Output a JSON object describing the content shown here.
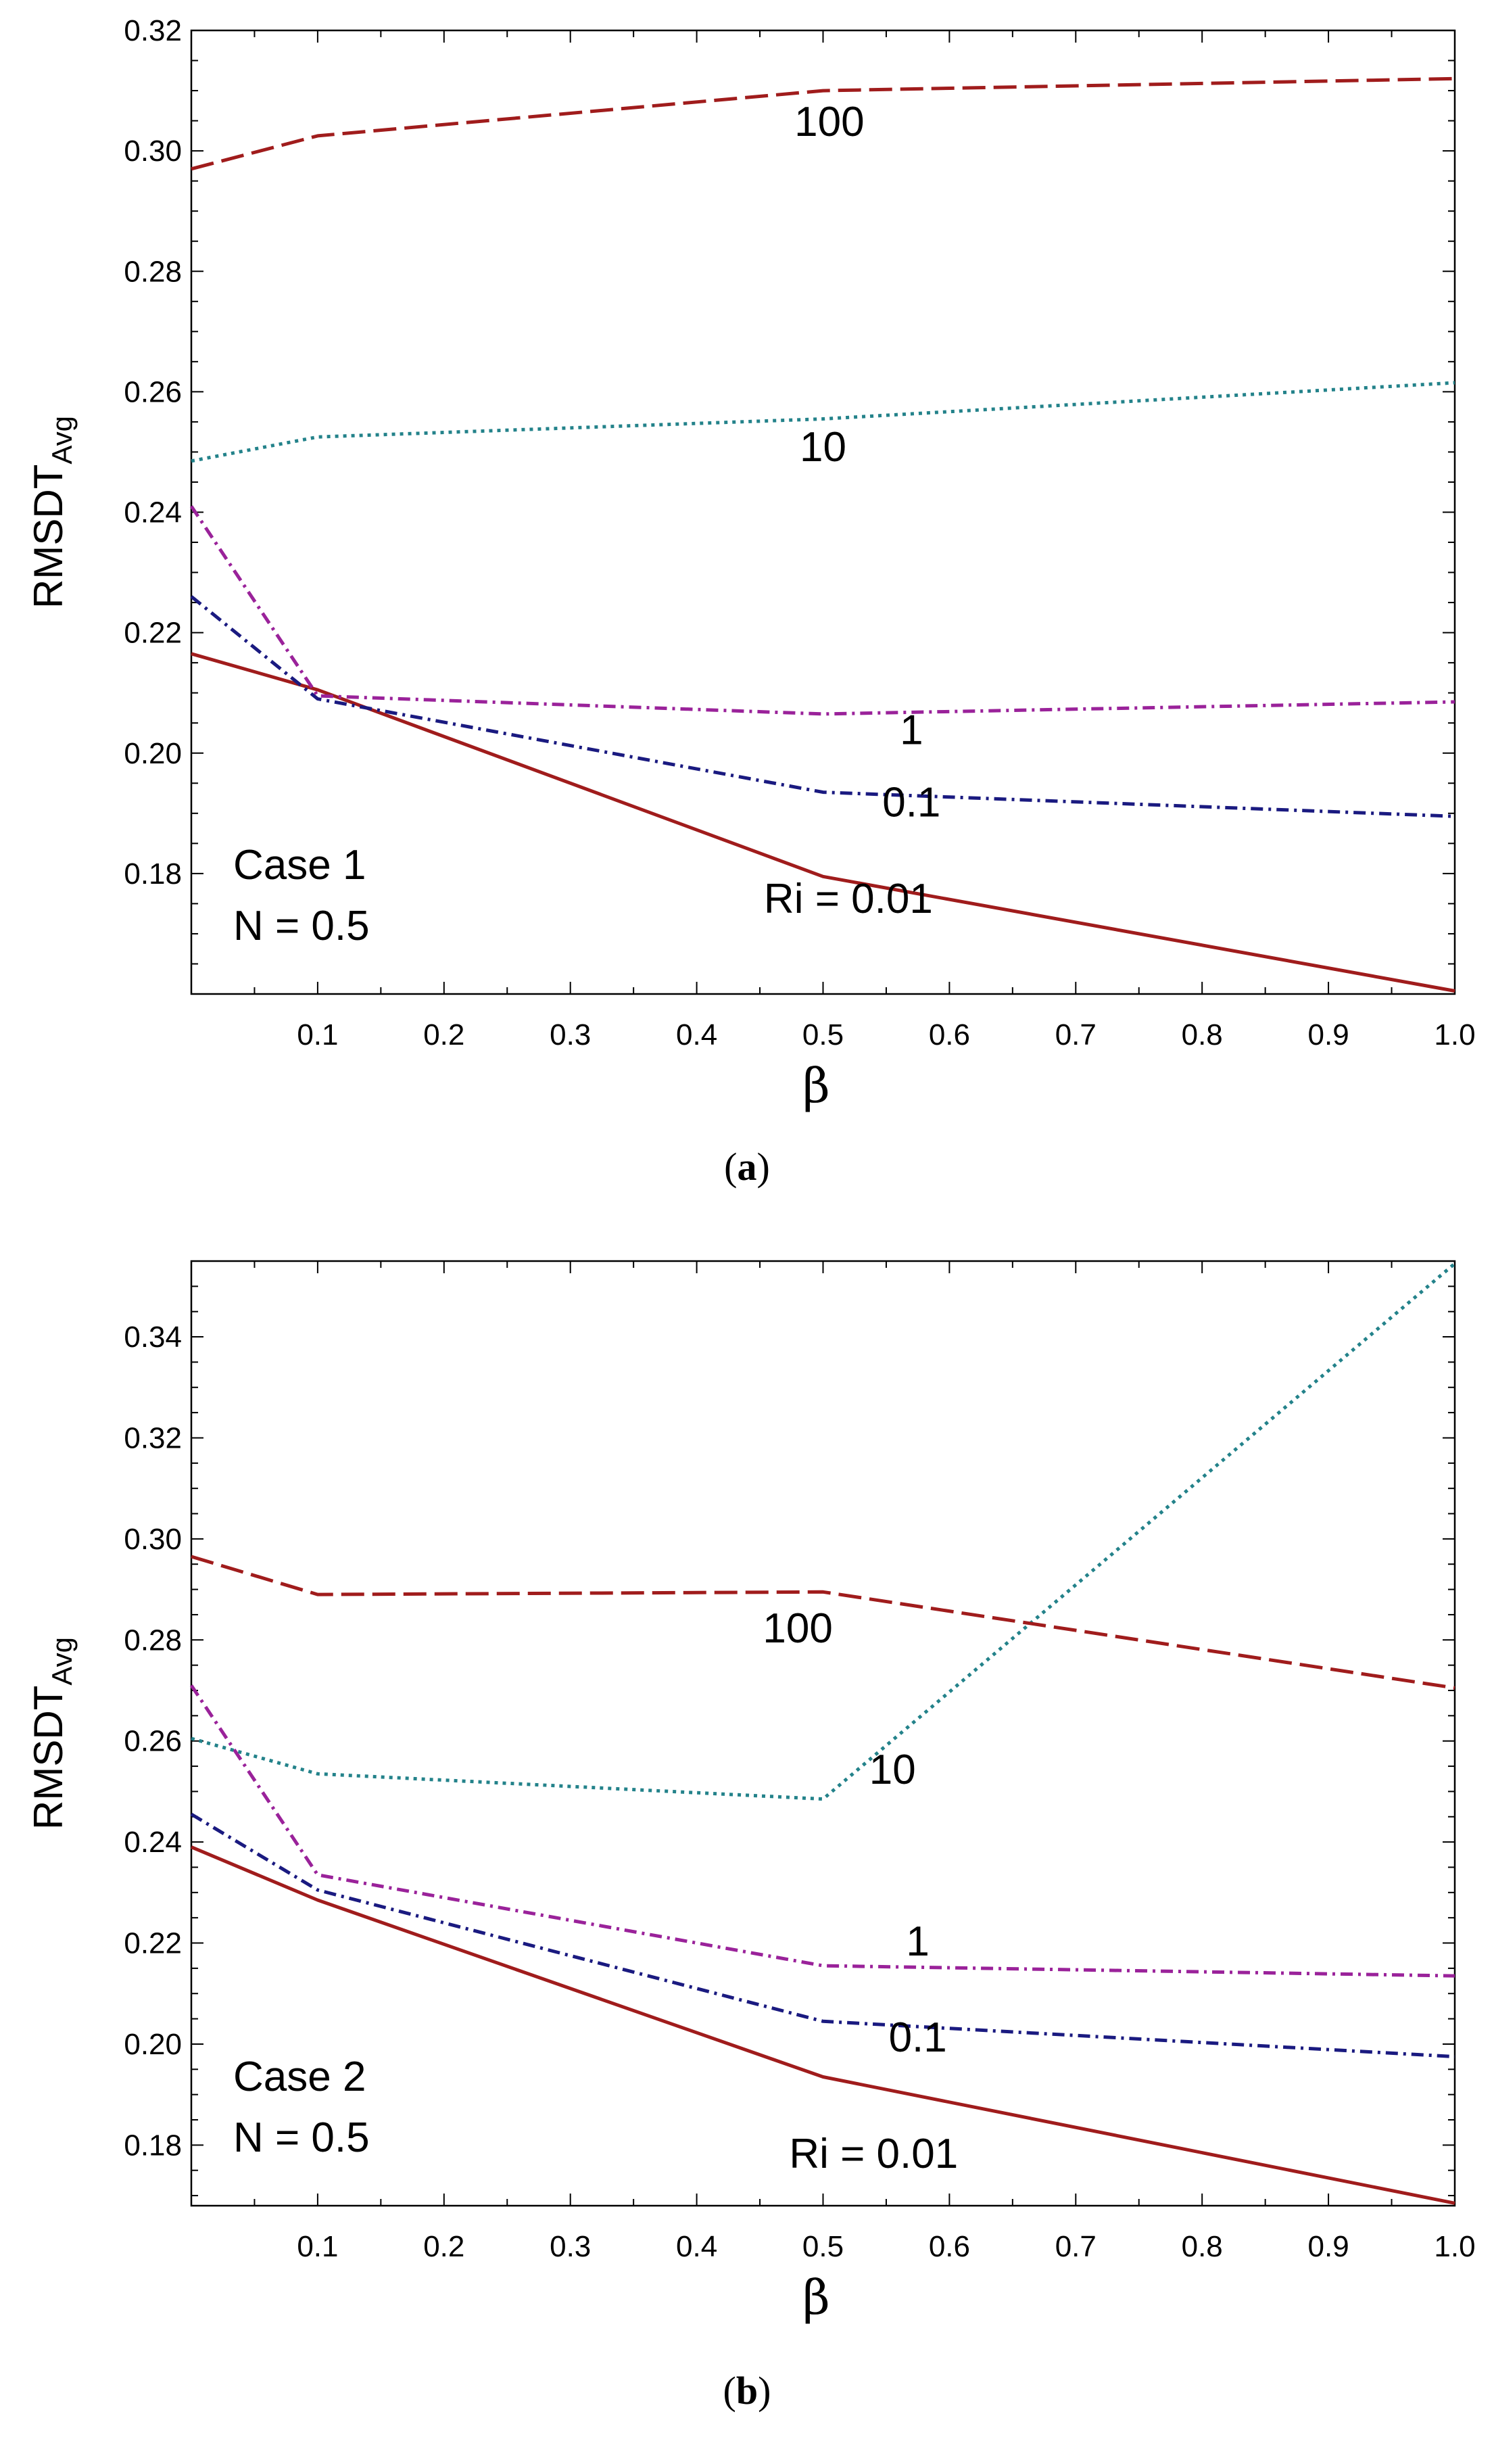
{
  "chart_data": [
    {
      "type": "line",
      "caption_letter": "a",
      "xlabel": "β",
      "ylabel": "RMSDT",
      "ylabel_sub": "Avg",
      "xlim": [
        0,
        1.0
      ],
      "ylim": [
        0.16,
        0.32
      ],
      "xticks": [
        0.1,
        0.2,
        0.3,
        0.4,
        0.5,
        0.6,
        0.7,
        0.8,
        0.9,
        1.0
      ],
      "xtick_labels": [
        "0.1",
        "0.2",
        "0.3",
        "0.4",
        "0.5",
        "0.6",
        "0.7",
        "0.8",
        "0.9",
        "1.0"
      ],
      "yticks": [
        0.18,
        0.2,
        0.22,
        0.24,
        0.26,
        0.28,
        0.3,
        0.32
      ],
      "ytick_labels": [
        "0.18",
        "0.20",
        "0.22",
        "0.24",
        "0.26",
        "0.28",
        "0.30",
        "0.32"
      ],
      "case_label": "Case 1",
      "n_label": "N = 0.5",
      "series": [
        {
          "name": "Ri = 0.01",
          "label": "Ri = 0.01",
          "label_x": 0.52,
          "label_y": 0.1735,
          "color": "#a01c1c",
          "dash": "solid",
          "x": [
            0,
            0.1,
            0.5,
            1.0
          ],
          "values": [
            0.2165,
            0.2105,
            0.1795,
            0.1605
          ]
        },
        {
          "name": "0.1",
          "label": "0.1",
          "label_x": 0.57,
          "label_y": 0.1895,
          "color": "#1a1a80",
          "dash": "dashdot",
          "x": [
            0,
            0.1,
            0.5,
            1.0
          ],
          "values": [
            0.226,
            0.209,
            0.1935,
            0.1895
          ]
        },
        {
          "name": "1",
          "label": "1",
          "label_x": 0.57,
          "label_y": 0.2015,
          "color": "#9a229a",
          "dash": "dashdot",
          "x": [
            0,
            0.1,
            0.5,
            1.0
          ],
          "values": [
            0.241,
            0.2095,
            0.2065,
            0.2085
          ]
        },
        {
          "name": "10",
          "label": "10",
          "label_x": 0.5,
          "label_y": 0.2485,
          "color": "#23828a",
          "dash": "dotted",
          "x": [
            0,
            0.1,
            0.5,
            1.0
          ],
          "values": [
            0.2485,
            0.2525,
            0.2555,
            0.2615
          ]
        },
        {
          "name": "100",
          "label": "100",
          "label_x": 0.505,
          "label_y": 0.3025,
          "color": "#a01c1c",
          "dash": "longdash",
          "x": [
            0,
            0.1,
            0.5,
            1.0
          ],
          "values": [
            0.297,
            0.3025,
            0.31,
            0.312
          ]
        }
      ]
    },
    {
      "type": "line",
      "caption_letter": "b",
      "xlabel": "β",
      "ylabel": "RMSDT",
      "ylabel_sub": "Avg",
      "xlim": [
        0,
        1.0
      ],
      "ylim": [
        0.168,
        0.355
      ],
      "xticks": [
        0.1,
        0.2,
        0.3,
        0.4,
        0.5,
        0.6,
        0.7,
        0.8,
        0.9,
        1.0
      ],
      "xtick_labels": [
        "0.1",
        "0.2",
        "0.3",
        "0.4",
        "0.5",
        "0.6",
        "0.7",
        "0.8",
        "0.9",
        "1.0"
      ],
      "yticks": [
        0.18,
        0.2,
        0.22,
        0.24,
        0.26,
        0.28,
        0.3,
        0.32,
        0.34
      ],
      "ytick_labels": [
        "0.18",
        "0.20",
        "0.22",
        "0.24",
        "0.26",
        "0.28",
        "0.30",
        "0.32",
        "0.34"
      ],
      "case_label": "Case 2",
      "n_label": "N = 0.5",
      "series": [
        {
          "name": "Ri = 0.01",
          "label": "Ri = 0.01",
          "label_x": 0.54,
          "label_y": 0.1755,
          "color": "#a01c1c",
          "dash": "solid",
          "x": [
            0,
            0.1,
            0.5,
            1.0
          ],
          "values": [
            0.239,
            0.2285,
            0.1935,
            0.1685
          ]
        },
        {
          "name": "0.1",
          "label": "0.1",
          "label_x": 0.575,
          "label_y": 0.1985,
          "color": "#1a1a80",
          "dash": "dashdot",
          "x": [
            0,
            0.1,
            0.5,
            1.0
          ],
          "values": [
            0.2455,
            0.2305,
            0.2045,
            0.1975
          ]
        },
        {
          "name": "1",
          "label": "1",
          "label_x": 0.575,
          "label_y": 0.2175,
          "color": "#9a229a",
          "dash": "dashdot",
          "x": [
            0,
            0.1,
            0.5,
            1.0
          ],
          "values": [
            0.271,
            0.2335,
            0.2155,
            0.2135
          ]
        },
        {
          "name": "10",
          "label": "10",
          "label_x": 0.555,
          "label_y": 0.2515,
          "color": "#23828a",
          "dash": "dotted",
          "x": [
            0,
            0.1,
            0.5,
            1.0
          ],
          "values": [
            0.2605,
            0.2535,
            0.2485,
            0.3545
          ]
        },
        {
          "name": "100",
          "label": "100",
          "label_x": 0.48,
          "label_y": 0.2795,
          "color": "#a01c1c",
          "dash": "longdash",
          "x": [
            0,
            0.1,
            0.5,
            1.0
          ],
          "values": [
            0.2965,
            0.289,
            0.2895,
            0.2705
          ]
        }
      ]
    }
  ]
}
